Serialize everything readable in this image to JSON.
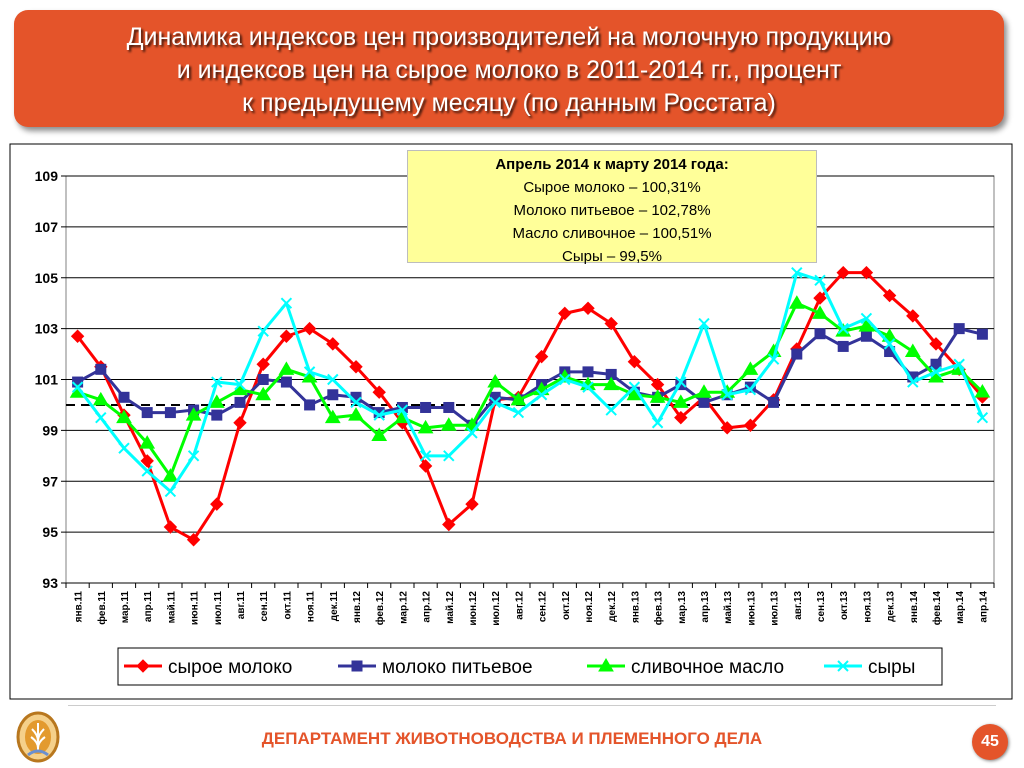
{
  "title": {
    "line1": "Динамика индексов цен производителей на молочную продукцию",
    "line2": "и индексов цен на сырое молоко в 2011-2014 гг., процент",
    "line3": "к предыдущему месяцу  (по данным Росстата)"
  },
  "info_box": {
    "heading": "Апрель 2014 к марту 2014 года:",
    "rows": [
      "Сырое молоко – 100,31%",
      "Молоко питьевое – 102,78%",
      "Масло сливочное – 100,51%",
      "Сыры – 99,5%"
    ]
  },
  "footer": {
    "department": "ДЕПАРТАМЕНТ ЖИВОТНОВОДСТВА И ПЛЕМЕННОГО ДЕЛА",
    "page_number": "45"
  },
  "colors": {
    "title_bg": "#e4542a",
    "raw_milk": "#ff0000",
    "drinking_milk": "#333399",
    "butter": "#00ff00",
    "cheese": "#00ffff"
  },
  "chart_data": {
    "type": "line",
    "categories": [
      "янв.11",
      "фев.11",
      "мар.11",
      "апр.11",
      "май.11",
      "июн.11",
      "июл.11",
      "авг.11",
      "сен.11",
      "окт.11",
      "ноя.11",
      "дек.11",
      "янв.12",
      "фев.12",
      "мар.12",
      "апр.12",
      "май.12",
      "июн.12",
      "июл.12",
      "авг.12",
      "сен.12",
      "окт.12",
      "ноя.12",
      "дек.12",
      "янв.13",
      "фев.13",
      "мар.13",
      "апр.13",
      "май.13",
      "июн.13",
      "июл.13",
      "авг.13",
      "сен.13",
      "окт.13",
      "ноя.13",
      "дек.13",
      "янв.14",
      "фев.14",
      "мар.14",
      "апр.14"
    ],
    "ylim": [
      93,
      109
    ],
    "yticks": [
      93,
      95,
      97,
      99,
      101,
      103,
      105,
      107,
      109
    ],
    "reference_line": 100,
    "grid": true,
    "legend_position": "bottom",
    "series": [
      {
        "name": "сырое молоко",
        "marker": "diamond",
        "color": "#ff0000",
        "values": [
          102.7,
          101.5,
          99.6,
          97.8,
          95.2,
          94.7,
          96.1,
          99.3,
          101.6,
          102.7,
          103.0,
          102.4,
          101.5,
          100.5,
          99.3,
          97.6,
          95.3,
          96.1,
          100.2,
          100.3,
          101.9,
          103.6,
          103.8,
          103.2,
          101.7,
          100.8,
          99.5,
          100.3,
          99.1,
          99.2,
          100.2,
          102.2,
          104.2,
          105.2,
          105.2,
          104.3,
          103.5,
          102.4,
          101.4,
          100.31
        ]
      },
      {
        "name": "молоко питьевое",
        "marker": "square",
        "color": "#333399",
        "values": [
          100.9,
          101.4,
          100.3,
          99.7,
          99.7,
          99.8,
          99.6,
          100.1,
          101.0,
          100.9,
          100.0,
          100.4,
          100.3,
          99.7,
          99.9,
          99.9,
          99.9,
          99.2,
          100.3,
          100.2,
          100.8,
          101.3,
          101.3,
          101.2,
          100.5,
          100.3,
          100.8,
          100.1,
          100.4,
          100.7,
          100.1,
          102.0,
          102.8,
          102.3,
          102.7,
          102.1,
          101.1,
          101.6,
          103.0,
          102.78
        ]
      },
      {
        "name": "сливочное масло",
        "marker": "triangle",
        "color": "#00ff00",
        "values": [
          100.5,
          100.2,
          99.5,
          98.5,
          97.2,
          99.6,
          100.1,
          100.6,
          100.4,
          101.4,
          101.1,
          99.5,
          99.6,
          98.8,
          99.5,
          99.1,
          99.2,
          99.2,
          100.9,
          100.2,
          100.6,
          101.1,
          100.8,
          100.8,
          100.4,
          100.3,
          100.1,
          100.5,
          100.5,
          101.4,
          102.1,
          104.0,
          103.6,
          102.9,
          103.1,
          102.7,
          102.1,
          101.1,
          101.4,
          100.51
        ]
      },
      {
        "name": "сыры",
        "marker": "x",
        "color": "#00ffff",
        "values": [
          100.7,
          99.5,
          98.3,
          97.4,
          96.6,
          98.0,
          100.9,
          100.8,
          102.9,
          104.0,
          101.3,
          101.0,
          100.1,
          99.6,
          99.8,
          98.0,
          98.0,
          98.9,
          100.1,
          99.7,
          100.4,
          101.0,
          100.7,
          99.8,
          100.7,
          99.3,
          100.9,
          103.2,
          100.4,
          100.6,
          101.8,
          105.2,
          104.9,
          103.0,
          103.4,
          102.4,
          100.9,
          101.3,
          101.6,
          99.5
        ]
      }
    ]
  }
}
